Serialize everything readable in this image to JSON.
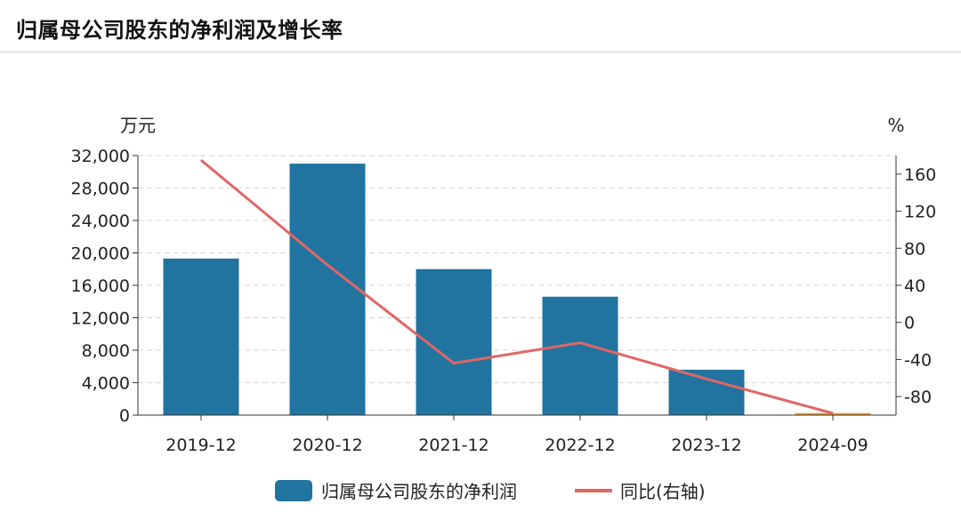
{
  "title": "归属母公司股东的净利润及增长率",
  "colors": {
    "bar": "#21749f",
    "bar_highlight": "#e59a2c",
    "line": "#e06666",
    "grid": "#d6d6d6",
    "axis": "#333333"
  },
  "chart_data": {
    "type": "bar",
    "title": "归属母公司股东的净利润及增长率",
    "categories": [
      "2019-12",
      "2020-12",
      "2021-12",
      "2022-12",
      "2023-12",
      "2024-09"
    ],
    "y_left_unit": "万元",
    "y_right_unit": "%",
    "ylim_left": [
      0,
      32000
    ],
    "ylim_right": [
      -100,
      180
    ],
    "left_ticks": [
      "0",
      "4,000",
      "8,000",
      "12,000",
      "16,000",
      "20,000",
      "24,000",
      "28,000",
      "32,000"
    ],
    "right_ticks": [
      "-80",
      "-40",
      "0",
      "40",
      "80",
      "120",
      "160"
    ],
    "grid": true,
    "legend_position": "bottom-center",
    "series": [
      {
        "name": "归属母公司股东的净利润",
        "type": "bar",
        "axis": "left",
        "values": [
          19300,
          31000,
          18000,
          14600,
          5600,
          250
        ]
      },
      {
        "name": "同比(右轴)",
        "type": "line",
        "axis": "right",
        "values": [
          175,
          62,
          -44,
          -22,
          -61,
          -98
        ]
      }
    ]
  }
}
